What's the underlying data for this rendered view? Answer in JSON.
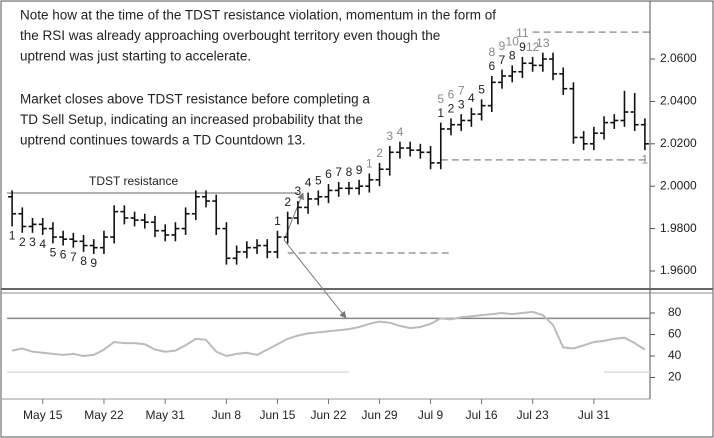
{
  "chart_data": [
    {
      "type": "ohlc",
      "open": [
        1.995,
        1.987,
        1.981,
        1.982,
        1.98,
        1.976,
        1.975,
        1.974,
        1.972,
        1.971,
        1.976,
        1.988,
        1.985,
        1.984,
        1.983,
        1.979,
        1.977,
        1.98,
        1.987,
        1.995,
        1.993,
        1.98,
        1.966,
        1.969,
        1.971,
        1.972,
        1.969,
        1.976,
        1.985,
        1.99,
        1.994,
        1.995,
        1.998,
        1.999,
        1.999,
        2.0,
        2.003,
        2.008,
        2.016,
        2.018,
        2.017,
        2.016,
        2.011,
        2.027,
        2.029,
        2.031,
        2.034,
        2.038,
        2.049,
        2.052,
        2.054,
        2.058,
        2.057,
        2.06,
        2.053,
        2.046,
        2.023,
        2.02,
        2.025,
        2.03,
        2.031,
        2.035,
        2.029
      ],
      "high": [
        1.998,
        1.99,
        1.985,
        1.985,
        1.983,
        1.979,
        1.978,
        1.977,
        1.975,
        1.979,
        1.991,
        1.991,
        1.988,
        1.987,
        1.986,
        1.982,
        1.983,
        1.99,
        1.998,
        1.998,
        1.996,
        1.983,
        1.972,
        1.974,
        1.975,
        1.975,
        1.979,
        1.988,
        1.993,
        1.997,
        1.998,
        2.001,
        2.002,
        2.002,
        2.003,
        2.006,
        2.011,
        2.019,
        2.021,
        2.021,
        2.02,
        2.019,
        2.03,
        2.032,
        2.034,
        2.037,
        2.041,
        2.052,
        2.055,
        2.057,
        2.061,
        2.061,
        2.063,
        2.063,
        2.056,
        2.049,
        2.026,
        2.028,
        2.033,
        2.034,
        2.045,
        2.044,
        2.032
      ],
      "low": [
        1.981,
        1.978,
        1.978,
        1.977,
        1.973,
        1.972,
        1.971,
        1.969,
        1.968,
        1.968,
        1.973,
        1.982,
        1.981,
        1.98,
        1.976,
        1.974,
        1.974,
        1.977,
        1.984,
        1.99,
        1.977,
        1.963,
        1.963,
        1.966,
        1.968,
        1.966,
        1.966,
        1.973,
        1.982,
        1.987,
        1.991,
        1.992,
        1.995,
        1.996,
        1.996,
        1.997,
        2.0,
        2.005,
        2.013,
        2.014,
        2.013,
        2.008,
        2.008,
        2.024,
        2.026,
        2.028,
        2.031,
        2.035,
        2.046,
        2.049,
        2.051,
        2.054,
        2.054,
        2.05,
        2.043,
        2.02,
        2.017,
        2.017,
        2.022,
        2.027,
        2.028,
        2.026,
        2.017
      ],
      "close": [
        1.987,
        1.981,
        1.982,
        1.98,
        1.976,
        1.975,
        1.974,
        1.972,
        1.971,
        1.976,
        1.988,
        1.985,
        1.984,
        1.983,
        1.979,
        1.977,
        1.98,
        1.987,
        1.995,
        1.993,
        1.98,
        1.966,
        1.969,
        1.971,
        1.972,
        1.969,
        1.976,
        1.985,
        1.99,
        1.994,
        1.995,
        1.998,
        1.999,
        1.999,
        2.0,
        2.003,
        2.008,
        2.016,
        2.018,
        2.017,
        2.016,
        2.011,
        2.027,
        2.029,
        2.031,
        2.034,
        2.038,
        2.049,
        2.052,
        2.054,
        2.058,
        2.057,
        2.06,
        2.053,
        2.046,
        2.023,
        2.02,
        2.025,
        2.03,
        2.031,
        2.035,
        2.029,
        2.02
      ],
      "color": "#111111",
      "ylim": [
        1.9515,
        2.0869
      ],
      "yticks": [
        {
          "value": 1.96,
          "label": "1.9600"
        },
        {
          "value": 1.98,
          "label": "1.9800"
        },
        {
          "value": 2.0,
          "label": "2.0000"
        },
        {
          "value": 2.02,
          "label": "2.0200"
        },
        {
          "value": 2.04,
          "label": "2.0400"
        },
        {
          "value": 2.06,
          "label": "2.0600"
        }
      ],
      "levels": [
        {
          "label": "TDST resistance",
          "value": 1.9968,
          "from": -0.5,
          "to": 28,
          "style": "solid",
          "color": "#999999"
        },
        {
          "value": 1.9685,
          "from": 27,
          "to": 43,
          "style": "dashed",
          "color": "#999999"
        },
        {
          "value": 2.0727,
          "from": 51,
          "to": 62.5,
          "style": "dashed",
          "color": "#999999"
        },
        {
          "value": 2.0124,
          "from": 42,
          "to": 62.5,
          "style": "dashed",
          "color": "#999999"
        }
      ],
      "bar_labels": [
        {
          "color": "#222222",
          "position": "below",
          "bars": [
            0,
            1,
            2,
            3,
            4,
            5,
            6,
            7,
            8
          ],
          "texts": [
            1,
            2,
            3,
            4,
            5,
            6,
            7,
            8,
            9
          ]
        },
        {
          "color": "#222222",
          "position": "above",
          "bars": [
            26,
            27,
            28,
            29,
            30,
            31,
            32,
            33,
            34,
            42,
            43,
            44,
            45,
            46,
            47,
            48,
            49,
            50
          ],
          "texts": [
            1,
            2,
            3,
            4,
            5,
            6,
            7,
            8,
            9,
            1,
            2,
            3,
            4,
            5,
            6,
            7,
            8,
            9
          ]
        },
        {
          "color": "#8a8a8a",
          "position": "above",
          "bars": [
            35,
            36,
            37,
            38,
            42,
            43,
            44,
            47,
            48,
            49,
            50,
            51,
            52
          ],
          "texts": [
            1,
            2,
            3,
            4,
            5,
            6,
            7,
            8,
            9,
            10,
            11,
            12,
            13
          ]
        },
        {
          "color": "#8a8a8a",
          "position": "below",
          "bars": [
            62
          ],
          "texts": [
            1
          ]
        }
      ],
      "notes": [
        [
          "Note how at the time of the TDST resistance violation, momentum in the form of",
          "the RSI was already approaching overbought territory even though the",
          "uptrend was just starting to accelerate."
        ],
        [
          "Market closes above TDST resistance before completing a",
          "TD Sell Setup, indicating an increased probability that the",
          "uptrend continues towards a TD Countdown 13."
        ]
      ]
    },
    {
      "type": "line",
      "values": [
        45,
        47,
        44,
        43,
        42,
        41,
        42,
        40,
        41,
        46,
        53,
        52,
        52,
        51,
        46,
        44,
        45,
        50,
        56,
        55,
        44,
        40,
        42,
        43,
        41,
        46,
        51,
        56,
        59,
        61,
        62,
        63,
        64,
        65,
        67,
        70,
        72,
        71,
        68,
        66,
        67,
        70,
        75,
        74,
        76,
        77,
        78,
        79,
        80,
        79,
        80,
        81,
        78,
        69,
        48,
        47,
        50,
        53,
        54,
        56,
        57,
        52,
        46
      ],
      "color": "#bbbbbb",
      "ylim": [
        0,
        100
      ],
      "yticks": [
        20,
        40,
        60,
        80
      ],
      "levels": [
        {
          "value": 75,
          "from": -0.5,
          "to": 62.5,
          "color": "#888888"
        },
        {
          "value": 25,
          "from": -0.5,
          "to": 33,
          "color": "#dddddd"
        },
        {
          "value": 25,
          "from": 58,
          "to": 62.5,
          "color": "#dddddd"
        }
      ],
      "xlim": [
        -0.5,
        62.5
      ],
      "xticks": [
        {
          "value": 3,
          "label": "May 15"
        },
        {
          "value": 9,
          "label": "May 22"
        },
        {
          "value": 15,
          "label": "May 31"
        },
        {
          "value": 21,
          "label": "Jun 8"
        },
        {
          "value": 26,
          "label": "Jun 15"
        },
        {
          "value": 31,
          "label": "Jun 22"
        },
        {
          "value": 36,
          "label": "Jun 29"
        },
        {
          "value": 41,
          "label": "Jul 9"
        },
        {
          "value": 46,
          "label": "Jul 16"
        },
        {
          "value": 51,
          "label": "Jul 23"
        },
        {
          "value": 57,
          "label": "Jul 31"
        }
      ]
    }
  ]
}
